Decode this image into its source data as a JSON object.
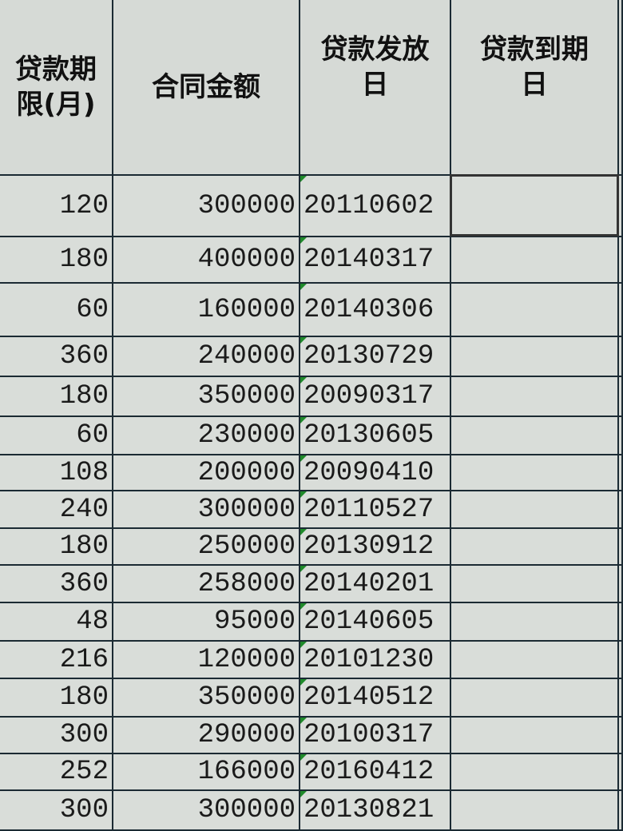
{
  "headers": [
    "贷款期限(月)",
    "合同金额",
    "贷款发放日",
    "贷款到期日"
  ],
  "header_lines": [
    [
      "贷款期",
      "限(月)"
    ],
    [
      "合同金额"
    ],
    [
      "贷款发放",
      "日"
    ],
    [
      "贷款到期",
      "日"
    ]
  ],
  "rows": [
    {
      "term": "120",
      "amount": "300000",
      "date": "20110602",
      "due": ""
    },
    {
      "term": "180",
      "amount": "400000",
      "date": "20140317",
      "due": ""
    },
    {
      "term": "60",
      "amount": "160000",
      "date": "20140306",
      "due": ""
    },
    {
      "term": "360",
      "amount": "240000",
      "date": "20130729",
      "due": ""
    },
    {
      "term": "180",
      "amount": "350000",
      "date": "20090317",
      "due": ""
    },
    {
      "term": "60",
      "amount": "230000",
      "date": "20130605",
      "due": ""
    },
    {
      "term": "108",
      "amount": "200000",
      "date": "20090410",
      "due": ""
    },
    {
      "term": "240",
      "amount": "300000",
      "date": "20110527",
      "due": ""
    },
    {
      "term": "180",
      "amount": "250000",
      "date": "20130912",
      "due": ""
    },
    {
      "term": "360",
      "amount": "258000",
      "date": "20140201",
      "due": ""
    },
    {
      "term": "48",
      "amount": "95000",
      "date": "20140605",
      "due": ""
    },
    {
      "term": "216",
      "amount": "120000",
      "date": "20101230",
      "due": ""
    },
    {
      "term": "180",
      "amount": "350000",
      "date": "20140512",
      "due": ""
    },
    {
      "term": "300",
      "amount": "290000",
      "date": "20100317",
      "due": ""
    },
    {
      "term": "252",
      "amount": "166000",
      "date": "20160412",
      "due": ""
    },
    {
      "term": "300",
      "amount": "300000",
      "date": "20130821",
      "due": ""
    }
  ],
  "selected_cell": "贷款到期日 row 1",
  "colors": {
    "grid_line": "#1b2a33",
    "cell_bg": "#d9ddd9",
    "text_indicator": "#1f8a2a"
  }
}
